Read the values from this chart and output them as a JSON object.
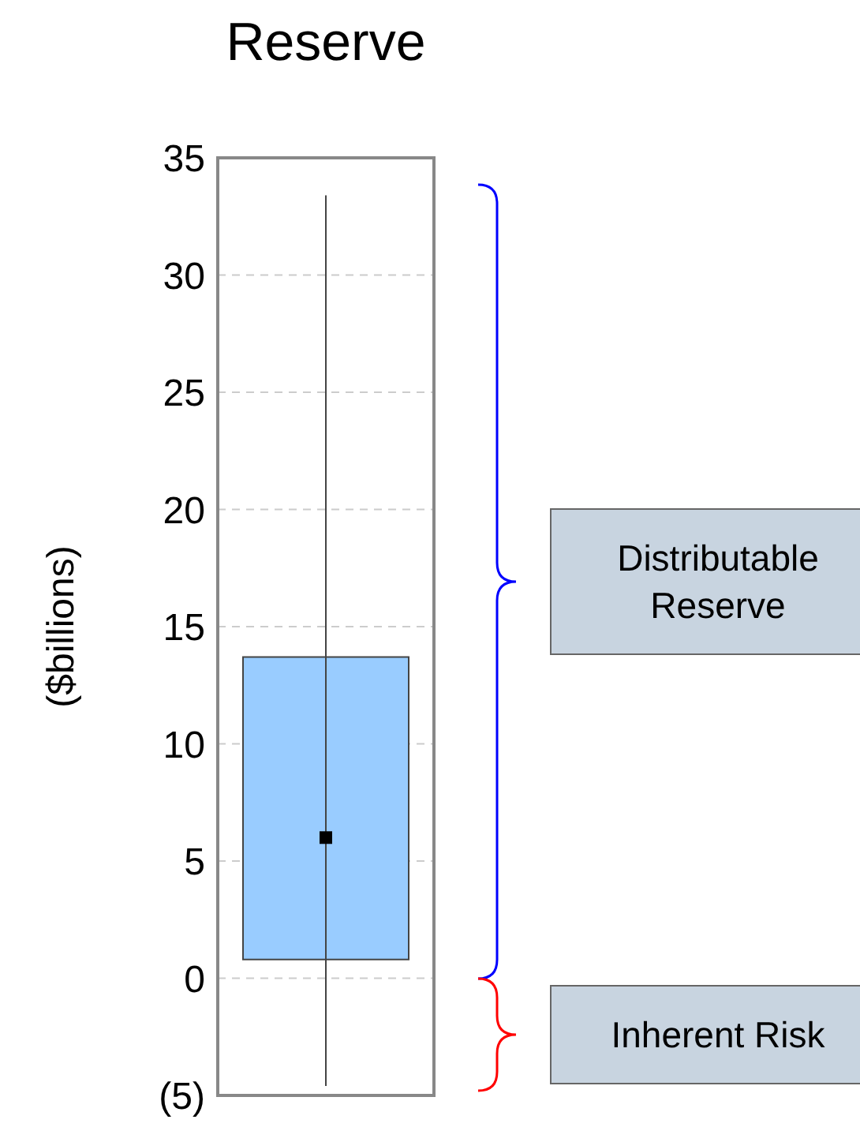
{
  "chart_data": {
    "type": "box",
    "title": "Reserve",
    "ylabel": "($billions)",
    "categories": [
      null
    ],
    "boxes": [
      {
        "low": -4.6,
        "q1": 0.8,
        "median": 6,
        "q3": 13.7,
        "high": 33.4
      }
    ],
    "color": "#99ccff",
    "marker": "square",
    "ylim": [
      -5,
      35
    ],
    "yticks": [
      {
        "value": -5,
        "label": "(5)"
      },
      0,
      5,
      10,
      15,
      20,
      25,
      30,
      35
    ],
    "grid": "y",
    "annotations": [
      "Distributable Reserve",
      "Inherent Risk"
    ]
  }
}
